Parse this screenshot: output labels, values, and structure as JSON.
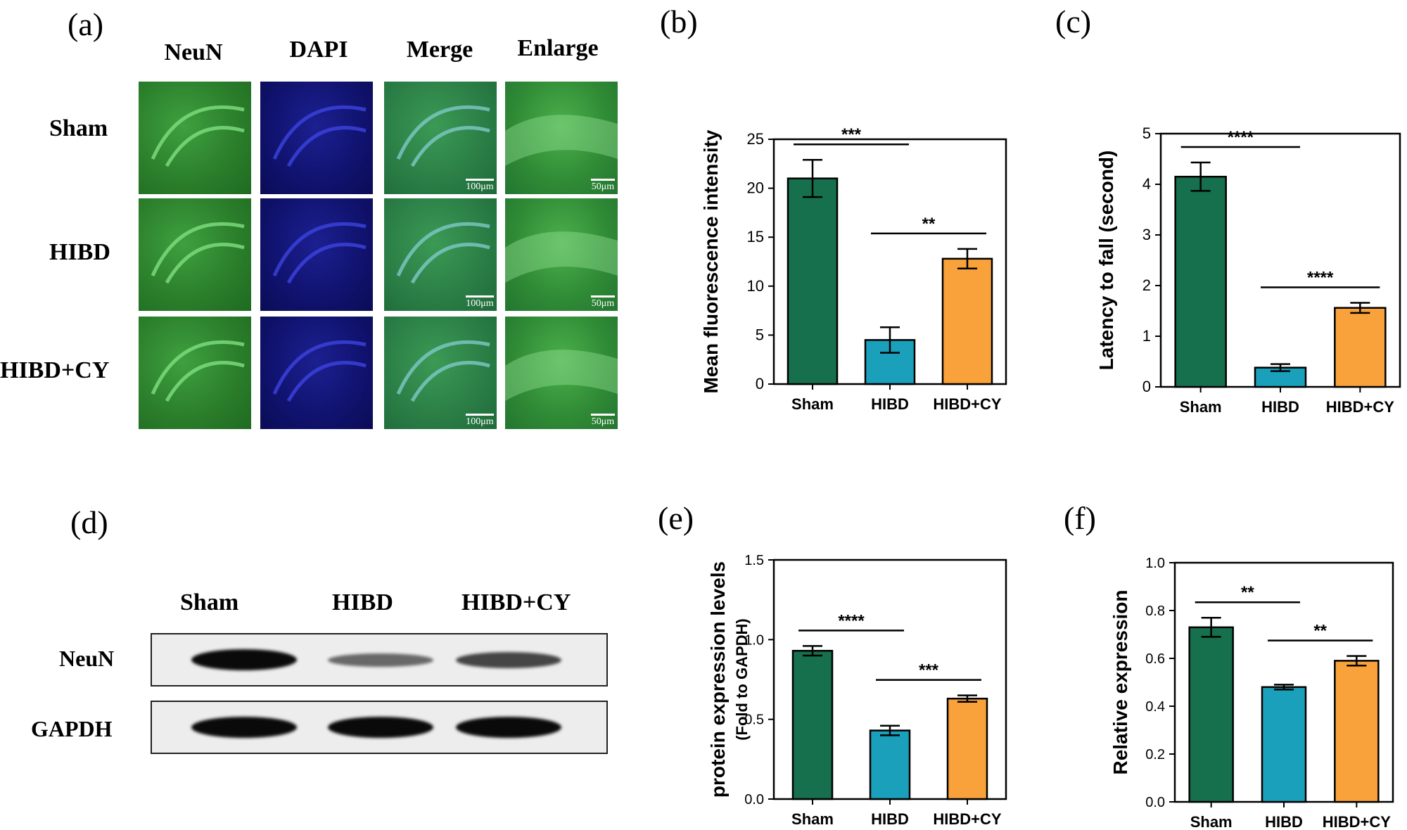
{
  "panels": {
    "a": "(a)",
    "b": "(b)",
    "c": "(c)",
    "d": "(d)",
    "e": "(e)",
    "f": "(f)"
  },
  "microscopy": {
    "columns": [
      "NeuN",
      "DAPI",
      "Merge",
      "Enlarge"
    ],
    "rows": [
      "Sham",
      "HIBD",
      "HIBD+CY"
    ],
    "scale_merge": "100μm",
    "scale_enlarge": "50μm"
  },
  "western_blot": {
    "lanes": [
      "Sham",
      "HIBD",
      "HIBD+CY"
    ],
    "rows": [
      "NeuN",
      "GAPDH"
    ],
    "neun_intensity": [
      1.0,
      0.45,
      0.65
    ],
    "gapdh_intensity": [
      1.0,
      1.0,
      1.0
    ]
  },
  "colors": {
    "sham": "#17704d",
    "hibd": "#1ba0bb",
    "hibdcy": "#f9a13a",
    "neun_green": "#2f8a2f",
    "dapi_blue": "#12147a"
  },
  "chart_data": [
    {
      "id": "b",
      "type": "bar",
      "categories": [
        "Sham",
        "HIBD",
        "HIBD+CY"
      ],
      "values": [
        21.0,
        4.5,
        12.8
      ],
      "errors": [
        1.9,
        1.3,
        1.0
      ],
      "ylabel": "Mean fluorescence intensity",
      "ylabel2": "",
      "ylim": [
        0,
        25
      ],
      "yticks": [
        "0",
        "5",
        "10",
        "15",
        "20",
        "25"
      ],
      "significance": [
        {
          "from": 0,
          "to": 1,
          "label": "***"
        },
        {
          "from": 1,
          "to": 2,
          "label": "**"
        }
      ]
    },
    {
      "id": "c",
      "type": "bar",
      "categories": [
        "Sham",
        "HIBD",
        "HIBD+CY"
      ],
      "values": [
        4.15,
        0.38,
        1.56
      ],
      "errors": [
        0.28,
        0.07,
        0.1
      ],
      "ylabel": "Latency to fall (second)",
      "ylabel2": "",
      "ylim": [
        0,
        5
      ],
      "yticks": [
        "0",
        "1",
        "2",
        "3",
        "4",
        "5"
      ],
      "significance": [
        {
          "from": 0,
          "to": 1,
          "label": "****"
        },
        {
          "from": 1,
          "to": 2,
          "label": "****"
        }
      ]
    },
    {
      "id": "e",
      "type": "bar",
      "categories": [
        "Sham",
        "HIBD",
        "HIBD+CY"
      ],
      "values": [
        0.93,
        0.43,
        0.63
      ],
      "errors": [
        0.03,
        0.03,
        0.02
      ],
      "ylabel": "protein expression levels",
      "ylabel2": "(Fold to GAPDH)",
      "ylim": [
        0,
        1.5
      ],
      "yticks": [
        "0.0",
        "0.5",
        "1.0",
        "1.5"
      ],
      "significance": [
        {
          "from": 0,
          "to": 1,
          "label": "****"
        },
        {
          "from": 1,
          "to": 2,
          "label": "***"
        }
      ]
    },
    {
      "id": "f",
      "type": "bar",
      "categories": [
        "Sham",
        "HIBD",
        "HIBD+CY"
      ],
      "values": [
        0.73,
        0.48,
        0.59
      ],
      "errors": [
        0.04,
        0.01,
        0.02
      ],
      "ylabel": "Relative expression",
      "ylabel2": "",
      "ylim": [
        0,
        1.0
      ],
      "yticks": [
        "0.0",
        "0.2",
        "0.4",
        "0.6",
        "0.8",
        "1.0"
      ],
      "significance": [
        {
          "from": 0,
          "to": 1,
          "label": "**"
        },
        {
          "from": 1,
          "to": 2,
          "label": "**"
        }
      ]
    }
  ]
}
